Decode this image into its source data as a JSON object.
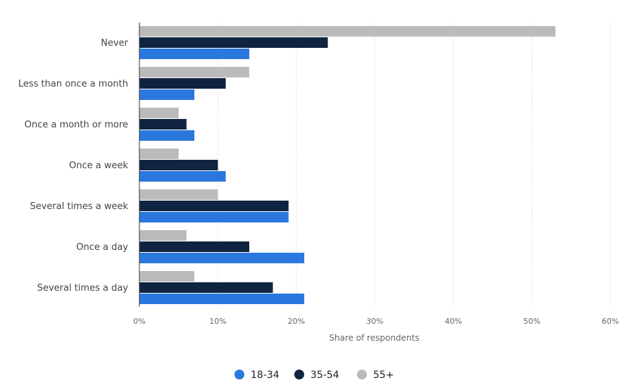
{
  "chart_data": {
    "type": "bar",
    "orientation": "horizontal",
    "categories": [
      "Never",
      "Less than once a month",
      "Once a month or more",
      "Once a week",
      "Several times a week",
      "Once a day",
      "Several times a day"
    ],
    "series": [
      {
        "name": "55+",
        "color": "#bbbbbb",
        "values": [
          53,
          14,
          5,
          5,
          10,
          6,
          7
        ]
      },
      {
        "name": "35-54",
        "color": "#0f2440",
        "values": [
          24,
          11,
          6,
          10,
          19,
          14,
          17
        ]
      },
      {
        "name": "18-34",
        "color": "#2a78de",
        "values": [
          14,
          7,
          7,
          11,
          19,
          21,
          21
        ]
      }
    ],
    "legend_order": [
      "18-34",
      "35-54",
      "55+"
    ],
    "xlabel": "Share of respondents",
    "xlim": [
      0,
      60
    ],
    "xticks": [
      "0%",
      "10%",
      "20%",
      "30%",
      "40%",
      "50%",
      "60%"
    ],
    "grid": true,
    "legend_placement": "bottom"
  }
}
